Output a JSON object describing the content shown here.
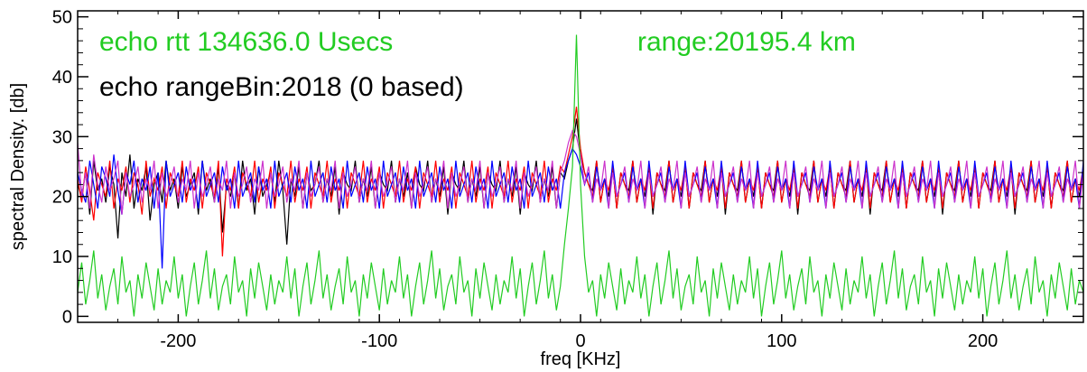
{
  "chart_data": {
    "type": "line",
    "title": "",
    "xlabel": "freq [KHz]",
    "ylabel": "spectral Density. [db]",
    "xlim": [
      -250,
      250
    ],
    "ylim": [
      -1,
      51
    ],
    "x_ticks": [
      -200,
      -100,
      0,
      100,
      200
    ],
    "y_ticks": [
      0,
      10,
      20,
      30,
      40,
      50
    ],
    "grid": false,
    "annotations": [
      {
        "text": "echo rtt 134636.0 Usecs",
        "color": "#22cc22"
      },
      {
        "text": "range:20195.4 km",
        "color": "#22cc22"
      },
      {
        "text": "echo rangeBin:2018 (0 based)",
        "color": "#000000"
      }
    ],
    "x_step": 2,
    "series": [
      {
        "color": "#000000",
        "values": [
          22,
          20,
          24,
          17,
          26,
          21,
          23,
          19,
          25,
          22,
          13,
          24,
          20,
          27,
          18,
          23,
          21,
          25,
          16,
          22,
          24,
          19,
          26,
          21,
          23,
          18,
          25,
          20,
          22,
          24,
          17,
          26,
          21,
          23,
          19,
          25,
          14,
          22,
          20,
          24,
          18,
          26,
          21,
          23,
          17,
          25,
          20,
          22,
          24,
          19,
          26,
          21,
          12,
          23,
          20,
          25,
          18,
          24,
          21,
          22,
          26,
          19,
          23,
          20,
          25,
          17,
          24,
          22,
          21,
          26,
          19,
          23,
          20,
          25,
          18,
          24,
          22,
          21,
          26,
          19,
          23,
          20,
          24,
          18,
          25,
          22,
          21,
          26,
          19,
          23,
          20,
          25,
          17,
          24,
          22,
          21,
          26,
          19,
          23,
          20,
          25,
          18,
          24,
          22,
          21,
          26,
          19,
          23,
          20,
          25,
          17,
          24,
          22,
          21,
          26,
          19,
          23,
          20,
          25,
          18,
          24,
          23,
          26,
          28,
          33,
          27,
          24,
          22,
          21,
          26,
          19,
          23,
          20,
          25,
          18,
          24,
          22,
          21,
          26,
          19,
          23,
          20,
          25,
          17,
          24,
          22,
          21,
          26,
          19,
          23,
          20,
          25,
          18,
          24,
          22,
          21,
          26,
          19,
          23,
          20,
          25,
          17,
          24,
          22,
          21,
          26,
          19,
          23,
          20,
          25,
          18,
          24,
          22,
          21,
          26,
          19,
          23,
          20,
          25,
          17,
          24,
          22,
          21,
          26,
          19,
          23,
          20,
          25,
          18,
          24,
          22,
          21,
          26,
          19,
          23,
          20,
          25,
          17,
          24,
          22,
          21,
          26,
          19,
          23,
          20,
          25,
          18,
          24,
          22,
          21,
          26,
          19,
          23,
          20,
          25,
          17,
          24,
          22,
          21,
          26,
          19,
          23,
          20,
          25,
          18,
          24,
          22,
          21,
          26,
          19,
          23,
          20,
          25,
          17,
          24,
          22,
          21,
          26,
          19,
          23,
          20,
          25,
          18,
          24,
          22,
          21,
          26,
          19,
          23,
          20,
          25,
          17,
          24,
          22,
          21,
          26,
          19
        ]
      },
      {
        "color": "#ff0000",
        "values": [
          23,
          19,
          25,
          21,
          16,
          24,
          22,
          20,
          26,
          18,
          23,
          21,
          25,
          19,
          24,
          22,
          17,
          26,
          20,
          23,
          21,
          25,
          18,
          24,
          22,
          20,
          26,
          19,
          23,
          21,
          25,
          18,
          24,
          22,
          20,
          26,
          10,
          23,
          21,
          25,
          18,
          24,
          22,
          20,
          26,
          19,
          23,
          21,
          25,
          18,
          24,
          22,
          20,
          26,
          19,
          23,
          21,
          25,
          18,
          24,
          22,
          20,
          26,
          19,
          23,
          21,
          25,
          18,
          24,
          22,
          20,
          26,
          19,
          23,
          21,
          25,
          18,
          24,
          22,
          20,
          26,
          19,
          23,
          21,
          25,
          18,
          24,
          22,
          20,
          26,
          19,
          23,
          21,
          25,
          18,
          24,
          22,
          20,
          26,
          19,
          23,
          21,
          25,
          18,
          24,
          22,
          20,
          26,
          19,
          23,
          21,
          25,
          18,
          24,
          22,
          20,
          26,
          19,
          23,
          21,
          25,
          24,
          27,
          30,
          35,
          28,
          24,
          22,
          20,
          26,
          19,
          23,
          21,
          25,
          18,
          24,
          22,
          20,
          26,
          19,
          23,
          21,
          25,
          18,
          24,
          22,
          20,
          26,
          19,
          23,
          21,
          25,
          18,
          24,
          22,
          20,
          26,
          19,
          23,
          21,
          25,
          18,
          24,
          22,
          20,
          26,
          19,
          23,
          21,
          25,
          18,
          24,
          22,
          20,
          26,
          19,
          23,
          21,
          25,
          18,
          24,
          22,
          20,
          26,
          19,
          23,
          21,
          25,
          18,
          24,
          22,
          20,
          26,
          19,
          23,
          21,
          25,
          18,
          24,
          22,
          20,
          26,
          19,
          23,
          21,
          25,
          18,
          24,
          22,
          20,
          26,
          19,
          23,
          21,
          25,
          18,
          24,
          22,
          20,
          26,
          19,
          23,
          21,
          25,
          18,
          24,
          22,
          20,
          26,
          19,
          23,
          21,
          25,
          18,
          24,
          22,
          20,
          26,
          19,
          23,
          21,
          25,
          18,
          24,
          22,
          20,
          26,
          19,
          23,
          21,
          25,
          18,
          24,
          22,
          20,
          26,
          19,
          23,
          21
        ]
      },
      {
        "color": "#0000ff",
        "values": [
          24,
          21,
          19,
          26,
          22,
          18,
          25,
          23,
          20,
          27,
          21,
          17,
          24,
          22,
          26,
          19,
          23,
          21,
          25,
          18,
          24,
          8,
          26,
          20,
          22,
          24,
          19,
          25,
          21,
          23,
          18,
          26,
          20,
          22,
          24,
          19,
          25,
          21,
          23,
          18,
          26,
          20,
          22,
          24,
          19,
          25,
          21,
          23,
          18,
          26,
          20,
          22,
          24,
          19,
          25,
          21,
          23,
          18,
          26,
          20,
          22,
          24,
          19,
          25,
          21,
          23,
          18,
          26,
          20,
          22,
          24,
          19,
          25,
          21,
          23,
          18,
          26,
          20,
          22,
          24,
          19,
          25,
          21,
          23,
          18,
          26,
          20,
          22,
          24,
          19,
          25,
          21,
          23,
          18,
          26,
          20,
          22,
          24,
          19,
          25,
          21,
          23,
          18,
          26,
          20,
          22,
          24,
          19,
          25,
          21,
          23,
          18,
          26,
          20,
          22,
          24,
          19,
          25,
          21,
          23,
          18,
          24,
          26,
          28,
          27,
          25,
          22,
          24,
          19,
          25,
          21,
          23,
          18,
          26,
          20,
          22,
          24,
          19,
          25,
          21,
          23,
          18,
          26,
          20,
          22,
          24,
          19,
          25,
          21,
          23,
          18,
          26,
          20,
          22,
          24,
          19,
          25,
          21,
          23,
          18,
          26,
          20,
          22,
          24,
          19,
          25,
          21,
          23,
          18,
          26,
          20,
          22,
          24,
          19,
          25,
          21,
          23,
          18,
          26,
          20,
          22,
          24,
          19,
          25,
          21,
          23,
          18,
          26,
          20,
          22,
          24,
          19,
          25,
          21,
          23,
          18,
          26,
          20,
          22,
          24,
          19,
          25,
          21,
          23,
          18,
          26,
          20,
          22,
          24,
          19,
          25,
          21,
          23,
          18,
          26,
          20,
          22,
          24,
          19,
          25,
          21,
          23,
          18,
          26,
          20,
          22,
          24,
          19,
          25,
          21,
          23,
          18,
          26,
          20,
          22,
          24,
          19,
          25,
          21,
          23,
          18,
          26,
          20,
          22,
          24,
          19,
          25,
          21,
          23,
          18,
          26,
          20,
          22,
          24,
          19,
          25,
          21,
          23,
          18,
          26,
          20,
          22,
          24,
          19,
          25,
          21
        ]
      },
      {
        "color": "#cc33cc",
        "values": [
          29,
          20,
          24,
          18,
          27,
          22,
          19,
          25,
          21,
          23,
          26,
          17,
          24,
          20,
          22,
          25,
          19,
          23,
          21,
          26,
          18,
          24,
          20,
          22,
          25,
          19,
          23,
          21,
          26,
          18,
          24,
          20,
          22,
          25,
          19,
          23,
          21,
          26,
          18,
          24,
          20,
          22,
          25,
          19,
          23,
          21,
          26,
          18,
          24,
          20,
          22,
          25,
          19,
          23,
          21,
          26,
          18,
          24,
          20,
          22,
          25,
          19,
          23,
          21,
          26,
          18,
          24,
          20,
          22,
          25,
          19,
          23,
          21,
          26,
          18,
          24,
          20,
          22,
          25,
          19,
          23,
          21,
          26,
          18,
          24,
          20,
          22,
          25,
          19,
          23,
          21,
          26,
          18,
          24,
          20,
          22,
          25,
          19,
          23,
          21,
          26,
          18,
          24,
          20,
          22,
          25,
          19,
          23,
          21,
          26,
          18,
          24,
          20,
          22,
          25,
          19,
          23,
          21,
          26,
          18,
          24,
          26,
          29,
          31,
          30,
          27,
          22,
          25,
          19,
          23,
          21,
          26,
          18,
          24,
          20,
          22,
          25,
          19,
          23,
          21,
          26,
          18,
          24,
          20,
          22,
          25,
          19,
          23,
          21,
          26,
          18,
          24,
          20,
          22,
          25,
          19,
          23,
          21,
          26,
          18,
          24,
          20,
          22,
          25,
          19,
          23,
          21,
          26,
          18,
          24,
          20,
          22,
          25,
          19,
          23,
          21,
          26,
          18,
          24,
          20,
          22,
          25,
          19,
          23,
          21,
          26,
          18,
          24,
          20,
          22,
          25,
          19,
          23,
          21,
          26,
          18,
          24,
          20,
          22,
          25,
          19,
          23,
          21,
          26,
          18,
          24,
          20,
          22,
          25,
          19,
          23,
          21,
          26,
          18,
          24,
          20,
          22,
          25,
          19,
          23,
          21,
          26,
          18,
          24,
          20,
          22,
          25,
          19,
          23,
          21,
          26,
          18,
          24,
          20,
          22,
          25,
          19,
          23,
          21,
          26,
          18,
          24,
          20,
          22,
          25,
          19,
          23,
          21,
          26,
          18,
          24,
          20,
          22,
          25,
          19,
          23,
          21,
          26,
          18,
          24,
          20,
          22,
          25,
          19,
          23,
          21
        ]
      },
      {
        "color": "#22cc22",
        "values": [
          4,
          9,
          2,
          6,
          11,
          3,
          7,
          1,
          5,
          8,
          2,
          10,
          4,
          6,
          0,
          7,
          3,
          9,
          5,
          1,
          8,
          2,
          6,
          4,
          10,
          3,
          7,
          0,
          5,
          9,
          2,
          6,
          11,
          3,
          8,
          1,
          5,
          7,
          2,
          10,
          4,
          6,
          0,
          8,
          3,
          9,
          5,
          1,
          7,
          2,
          6,
          4,
          10,
          3,
          8,
          0,
          5,
          9,
          2,
          6,
          11,
          3,
          7,
          1,
          5,
          8,
          2,
          10,
          4,
          6,
          0,
          7,
          3,
          9,
          5,
          1,
          8,
          2,
          6,
          4,
          10,
          3,
          7,
          0,
          5,
          9,
          2,
          6,
          11,
          3,
          8,
          1,
          5,
          7,
          2,
          10,
          4,
          6,
          0,
          8,
          3,
          9,
          5,
          1,
          7,
          2,
          6,
          4,
          10,
          3,
          8,
          0,
          5,
          9,
          2,
          6,
          11,
          3,
          7,
          1,
          5,
          12,
          18,
          25,
          47,
          22,
          10,
          4,
          6,
          0,
          7,
          3,
          9,
          5,
          1,
          8,
          2,
          6,
          4,
          10,
          3,
          7,
          0,
          5,
          9,
          2,
          6,
          11,
          3,
          8,
          1,
          5,
          7,
          2,
          10,
          4,
          6,
          0,
          8,
          3,
          9,
          5,
          1,
          7,
          2,
          6,
          4,
          10,
          3,
          8,
          0,
          5,
          9,
          2,
          6,
          11,
          3,
          7,
          1,
          5,
          8,
          2,
          10,
          4,
          6,
          0,
          7,
          3,
          9,
          5,
          1,
          8,
          2,
          6,
          4,
          10,
          3,
          7,
          0,
          5,
          9,
          2,
          6,
          11,
          3,
          8,
          1,
          5,
          7,
          2,
          10,
          4,
          6,
          0,
          8,
          3,
          9,
          5,
          1,
          7,
          2,
          6,
          4,
          10,
          3,
          8,
          0,
          5,
          9,
          2,
          6,
          11,
          3,
          7,
          1,
          5,
          8,
          2,
          10,
          4,
          6,
          0,
          7,
          3,
          9,
          5,
          1,
          8,
          2,
          6,
          4,
          10,
          3,
          7,
          0,
          5,
          9,
          2,
          6,
          11,
          3,
          8,
          1,
          5,
          7,
          2,
          10,
          4,
          6,
          0,
          8,
          3,
          9,
          5
        ]
      }
    ]
  }
}
